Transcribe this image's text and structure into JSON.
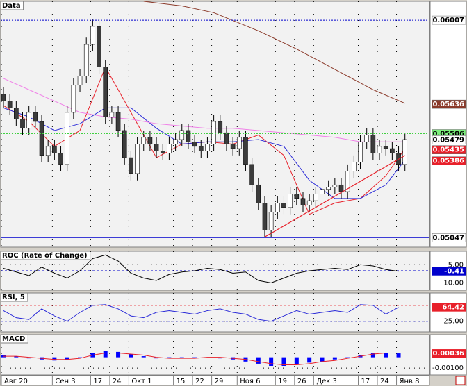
{
  "chart_data": [
    {
      "type": "candlestick",
      "title": "Data",
      "categories": [
        "Авг 20",
        null,
        null,
        null,
        null,
        null,
        null,
        null,
        "Сен 3",
        null,
        null,
        null,
        null,
        null,
        "17",
        null,
        null,
        "24",
        null,
        null,
        "Окт 1",
        null,
        null,
        null,
        null,
        null,
        null,
        "15",
        null,
        null,
        "22",
        null,
        null,
        "29",
        null,
        null,
        null,
        "Ноя 6",
        null,
        null,
        null,
        null,
        null,
        "19",
        null,
        null,
        "26",
        null,
        null,
        "Дек 3",
        null,
        null,
        null,
        null,
        null,
        null,
        "17",
        null,
        null,
        "24",
        null,
        null,
        "Янв 8",
        null
      ],
      "ohlc": [
        [
          0.0568,
          0.0571,
          0.0562,
          0.0565
        ],
        [
          0.0565,
          0.0568,
          0.0559,
          0.0562
        ],
        [
          0.0562,
          0.0565,
          0.0554,
          0.0557
        ],
        [
          0.0557,
          0.056,
          0.055,
          0.0553
        ],
        [
          0.0553,
          0.0563,
          0.055,
          0.056
        ],
        [
          0.056,
          0.0563,
          0.0553,
          0.0556
        ],
        [
          0.0556,
          0.0559,
          0.0538,
          0.0541
        ],
        [
          0.0541,
          0.0548,
          0.0538,
          0.0545
        ],
        [
          0.0545,
          0.0548,
          0.0539,
          0.0542
        ],
        [
          0.0542,
          0.0545,
          0.0534,
          0.0537
        ],
        [
          0.0537,
          0.0563,
          0.0534,
          0.056
        ],
        [
          0.056,
          0.0575,
          0.0557,
          0.0572
        ],
        [
          0.0572,
          0.0579,
          0.0569,
          0.0576
        ],
        [
          0.0576,
          0.0593,
          0.0573,
          0.059
        ],
        [
          0.059,
          0.0601,
          0.0587,
          0.0598
        ],
        [
          0.0598,
          0.0601,
          0.0577,
          0.058
        ],
        [
          0.058,
          0.0583,
          0.0555,
          0.0558
        ],
        [
          0.0558,
          0.0563,
          0.0555,
          0.056
        ],
        [
          0.056,
          0.0563,
          0.0549,
          0.0552
        ],
        [
          0.0552,
          0.0555,
          0.0537,
          0.054
        ],
        [
          0.054,
          0.0543,
          0.053,
          0.0533
        ],
        [
          0.0533,
          0.0549,
          0.053,
          0.0546
        ],
        [
          0.0546,
          0.0552,
          0.0543,
          0.0549
        ],
        [
          0.0549,
          0.0552,
          0.0543,
          0.0546
        ],
        [
          0.0546,
          0.0549,
          0.054,
          0.0543
        ],
        [
          0.0543,
          0.0546,
          0.0539,
          0.0542
        ],
        [
          0.0542,
          0.0549,
          0.0539,
          0.0546
        ],
        [
          0.0546,
          0.0551,
          0.0543,
          0.0548
        ],
        [
          0.0548,
          0.0555,
          0.0545,
          0.0552
        ],
        [
          0.0552,
          0.0555,
          0.0544,
          0.0547
        ],
        [
          0.0547,
          0.055,
          0.0542,
          0.0545
        ],
        [
          0.0545,
          0.0548,
          0.054,
          0.0543
        ],
        [
          0.0543,
          0.0549,
          0.054,
          0.0546
        ],
        [
          0.0546,
          0.0559,
          0.0543,
          0.0556
        ],
        [
          0.0556,
          0.0559,
          0.0548,
          0.0551
        ],
        [
          0.0551,
          0.0554,
          0.0543,
          0.0546
        ],
        [
          0.0546,
          0.0549,
          0.0541,
          0.0544
        ],
        [
          0.0544,
          0.0552,
          0.0541,
          0.0549
        ],
        [
          0.0549,
          0.0552,
          0.0534,
          0.0537
        ],
        [
          0.0537,
          0.054,
          0.0525,
          0.0528
        ],
        [
          0.0528,
          0.0531,
          0.0517,
          0.052
        ],
        [
          0.052,
          0.0523,
          0.0505,
          0.0508
        ],
        [
          0.0508,
          0.0519,
          0.0505,
          0.0516
        ],
        [
          0.0516,
          0.0523,
          0.0513,
          0.052
        ],
        [
          0.052,
          0.0523,
          0.0515,
          0.0518
        ],
        [
          0.0518,
          0.0527,
          0.0515,
          0.0524
        ],
        [
          0.0524,
          0.0527,
          0.0519,
          0.0522
        ],
        [
          0.0522,
          0.0525,
          0.0516,
          0.0519
        ],
        [
          0.0519,
          0.0524,
          0.0516,
          0.0521
        ],
        [
          0.0521,
          0.0527,
          0.0518,
          0.0524
        ],
        [
          0.0524,
          0.0529,
          0.0521,
          0.0526
        ],
        [
          0.0526,
          0.053,
          0.0523,
          0.0527
        ],
        [
          0.0527,
          0.0531,
          0.0524,
          0.0528
        ],
        [
          0.0528,
          0.0531,
          0.0522,
          0.0525
        ],
        [
          0.0525,
          0.0537,
          0.0522,
          0.0534
        ],
        [
          0.0534,
          0.0541,
          0.0531,
          0.0538
        ],
        [
          0.0538,
          0.055,
          0.0535,
          0.0547
        ],
        [
          0.0547,
          0.0553,
          0.0544,
          0.055
        ],
        [
          0.055,
          0.0553,
          0.0539,
          0.0542
        ],
        [
          0.0542,
          0.0548,
          0.0539,
          0.0545
        ],
        [
          0.0545,
          0.0548,
          0.0541,
          0.0544
        ],
        [
          0.0544,
          0.0547,
          0.0539,
          0.0542
        ],
        [
          0.0542,
          0.0545,
          0.0534,
          0.0537
        ],
        [
          0.0537,
          0.0551,
          0.0534,
          0.0548
        ]
      ],
      "up_color": "#ffffff",
      "down_color": "#3c3c3c",
      "ylim": [
        0.05005,
        0.0609
      ],
      "overlays": [
        {
          "color": "#e8202a",
          "x": [
            0,
            4,
            8,
            12,
            16,
            20,
            24,
            28,
            32,
            36,
            40,
            44,
            48,
            52,
            56,
            60,
            63
          ],
          "values": [
            0.0563,
            0.0556,
            0.0545,
            0.0552,
            0.058,
            0.056,
            0.054,
            0.0546,
            0.0547,
            0.0546,
            0.055,
            0.0541,
            0.0515,
            0.052,
            0.0522,
            0.0532,
            0.0544
          ]
        },
        {
          "color": "#2a2ad8",
          "x": [
            0,
            4,
            8,
            12,
            16,
            20,
            24,
            28,
            32,
            36,
            40,
            44,
            48,
            52,
            56,
            60,
            63
          ],
          "values": [
            0.0562,
            0.0558,
            0.0552,
            0.0555,
            0.0562,
            0.0562,
            0.0553,
            0.0546,
            0.0547,
            0.0547,
            0.0548,
            0.0545,
            0.053,
            0.0522,
            0.0522,
            0.0528,
            0.0539
          ]
        },
        {
          "color": "#f080e8",
          "x": [
            0,
            4,
            8,
            12,
            16,
            20,
            24,
            28,
            32,
            36,
            40,
            44,
            48,
            52,
            56,
            60,
            63
          ],
          "values": [
            0.0575,
            0.057,
            0.0565,
            0.056,
            0.0558,
            0.0557,
            0.0555,
            0.0554,
            0.0553,
            0.0553,
            0.0552,
            0.0551,
            0.055,
            0.0549,
            0.0547,
            0.0547,
            0.0547
          ]
        },
        {
          "color": "#8b3a2a",
          "x": [
            22,
            28,
            33,
            40,
            46,
            52,
            58,
            63
          ],
          "values": [
            0.0609,
            0.0607,
            0.0604,
            0.0596,
            0.0588,
            0.0579,
            0.057,
            0.0564
          ]
        }
      ],
      "trendline": {
        "color": "#e8202a",
        "points": [
          [
            41,
            0.0505
          ],
          [
            63,
            0.0541
          ]
        ]
      },
      "price_labels": [
        {
          "value": 0.06007,
          "color": "#ffffff",
          "text_color": "#000000",
          "line": "#0000cc",
          "line_style": "dotted"
        },
        {
          "value": 0.05636,
          "color": "#8b3a2a",
          "text_color": "#ffffff"
        },
        {
          "value": 0.05506,
          "color": "#7cf07c",
          "text_color": "#000000",
          "line": "#40d040",
          "line_style": "dotted"
        },
        {
          "value": 0.05479,
          "color": "#ffffff",
          "text_color": "#000000"
        },
        {
          "value": 0.05435,
          "color": "#e8202a",
          "text_color": "#ffffff"
        },
        {
          "value": 0.05386,
          "color": "#e8202a",
          "text_color": "#ffffff"
        },
        {
          "value": 0.05047,
          "color": "#ffffff",
          "text_color": "#000000",
          "line": "#0000cc",
          "line_style": "solid"
        }
      ]
    },
    {
      "type": "line",
      "title": "ROC (Rate of Change)",
      "color": "#000000",
      "x": [
        0,
        2,
        4,
        6,
        8,
        10,
        12,
        14,
        16,
        18,
        20,
        22,
        24,
        26,
        28,
        30,
        32,
        34,
        36,
        38,
        40,
        42,
        44,
        46,
        48,
        50,
        52,
        54,
        56,
        58,
        60,
        62
      ],
      "values": [
        2,
        -1,
        -4,
        3,
        -2,
        -6,
        0,
        10,
        13,
        8,
        -2,
        -6,
        -8,
        -3,
        -1,
        0,
        2,
        1,
        -2,
        -1,
        -8,
        -10,
        -6,
        -2,
        0,
        1,
        2,
        1,
        5,
        4,
        1,
        -0.41
      ],
      "ylim": [
        -16,
        16
      ],
      "yticks": [
        {
          "value": 5,
          "label": "5.00"
        },
        {
          "value": -10,
          "label": "-10.00"
        }
      ],
      "levels": [
        {
          "value": 0,
          "color": "#0000cc"
        }
      ],
      "last_label": {
        "value": -0.41,
        "color": "#0000cc"
      }
    },
    {
      "type": "line",
      "title": "RSI, 5",
      "color": "#2a2ad8",
      "x": [
        0,
        2,
        4,
        6,
        8,
        10,
        12,
        14,
        16,
        18,
        20,
        22,
        24,
        26,
        28,
        30,
        32,
        34,
        36,
        38,
        40,
        42,
        44,
        46,
        48,
        50,
        52,
        54,
        56,
        58,
        60,
        62
      ],
      "values": [
        55,
        35,
        30,
        60,
        40,
        25,
        50,
        70,
        72,
        60,
        40,
        35,
        50,
        55,
        50,
        45,
        55,
        60,
        50,
        45,
        30,
        25,
        40,
        55,
        45,
        50,
        55,
        50,
        72,
        70,
        45,
        64.42
      ],
      "ylim": [
        -5,
        105
      ],
      "yticks": [
        {
          "value": 25,
          "label": "25.00"
        }
      ],
      "levels": [
        {
          "value": 70,
          "color": "#e8202a"
        },
        {
          "value": 25,
          "color": "#0000cc"
        }
      ],
      "last_label": {
        "value": 64.42,
        "color": "#e8202a"
      }
    },
    {
      "type": "bar",
      "title": "MACD",
      "color": "#0000ff",
      "x": [
        0,
        2,
        4,
        6,
        8,
        10,
        12,
        14,
        16,
        18,
        20,
        22,
        24,
        26,
        28,
        30,
        32,
        34,
        36,
        38,
        40,
        42,
        44,
        46,
        48,
        50,
        52,
        54,
        56,
        58,
        60,
        62
      ],
      "values": [
        0.0002,
        0.0001,
        -0.0001,
        -0.0002,
        -0.0003,
        -0.0002,
        0,
        0.0004,
        0.0006,
        0.0005,
        0.0003,
        0.0001,
        -0.0001,
        -0.0001,
        -0.0001,
        0,
        0,
        -0.0001,
        -0.0002,
        -0.0004,
        -0.0006,
        -0.0008,
        -0.0008,
        -0.0007,
        -0.0005,
        -0.0004,
        -0.0002,
        0,
        0.0002,
        0.0004,
        0.0004,
        0.00036
      ],
      "signal": {
        "color": "#e8202a",
        "values": [
          0.0001,
          0.0001,
          0,
          -0.0001,
          -0.0002,
          -0.0002,
          -0.0001,
          0.0002,
          0.0004,
          0.0004,
          0.0003,
          0.0002,
          0,
          -0.0001,
          -0.0001,
          -0.0001,
          0,
          0,
          -0.0001,
          -0.0002,
          -0.0004,
          -0.0006,
          -0.0007,
          -0.0007,
          -0.0006,
          -0.0004,
          -0.0003,
          -0.0001,
          0.0001,
          0.0003,
          0.0004,
          0.0004
        ]
      },
      "ylim": [
        -0.00164,
        0.00211
      ],
      "yticks": [
        {
          "value": -0.001,
          "label": "-0.00100"
        }
      ],
      "last_label": {
        "value": 0.00036,
        "color": "#e8202a"
      }
    }
  ]
}
